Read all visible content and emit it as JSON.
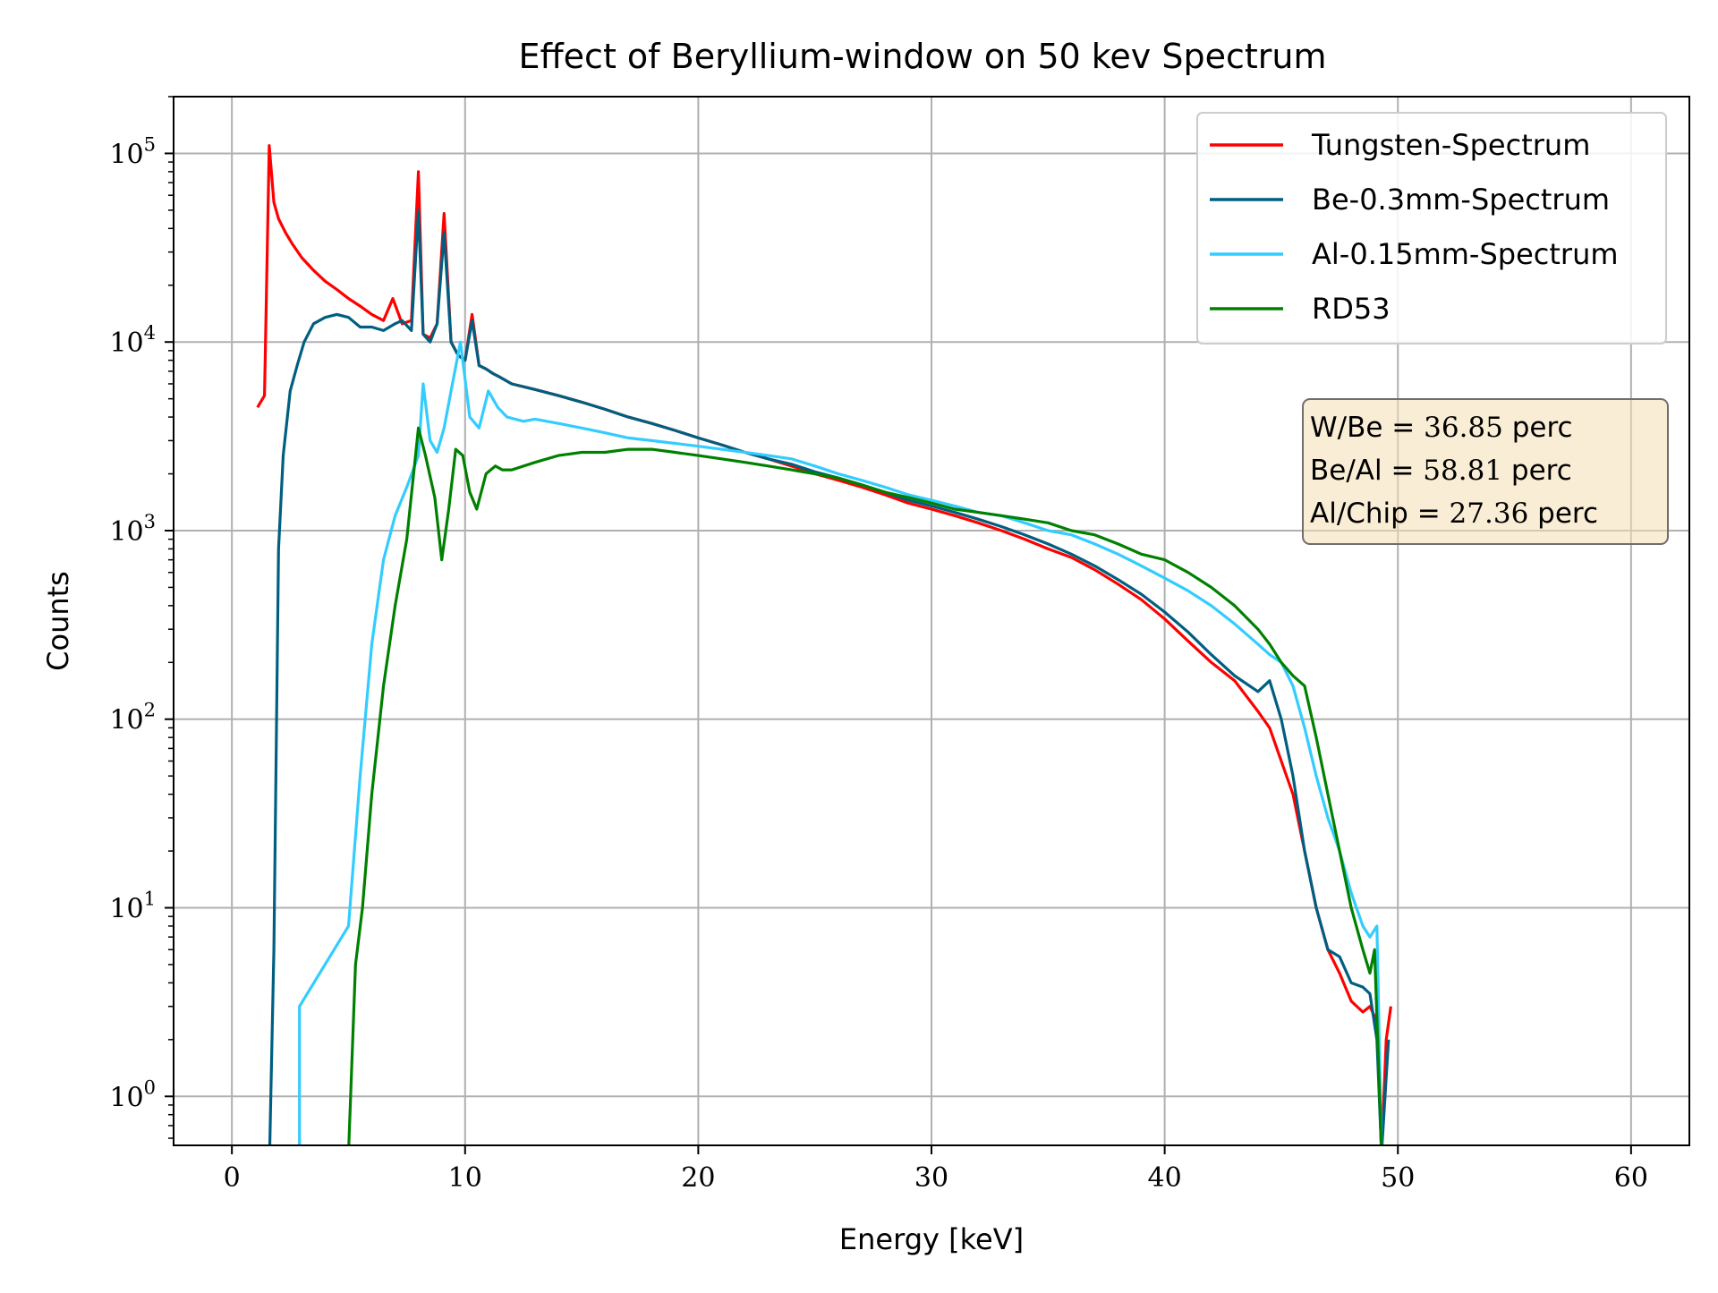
{
  "chart_data": {
    "type": "line",
    "title": "Effect of Beryllium-window on 50 kev Spectrum",
    "xlabel": "Energy [keV]",
    "ylabel": "Counts",
    "xscale": "linear",
    "yscale": "log",
    "xlim": [
      -2.5,
      62.5
    ],
    "ylim": [
      0.55,
      200000
    ],
    "x_ticks": [
      0,
      10,
      20,
      30,
      40,
      50,
      60
    ],
    "x_tick_labels": [
      "0",
      "10",
      "20",
      "30",
      "40",
      "50",
      "60"
    ],
    "y_ticks": [
      1,
      10,
      100,
      1000,
      10000,
      100000
    ],
    "y_tick_labels": [
      {
        "base": "10",
        "exp": "0"
      },
      {
        "base": "10",
        "exp": "1"
      },
      {
        "base": "10",
        "exp": "2"
      },
      {
        "base": "10",
        "exp": "3"
      },
      {
        "base": "10",
        "exp": "4"
      },
      {
        "base": "10",
        "exp": "5"
      }
    ],
    "grid": true,
    "legend_position": "top-right",
    "series": [
      {
        "name": "Tungsten-Spectrum",
        "color": "#ff0000",
        "x": [
          1.1,
          1.4,
          1.6,
          1.8,
          2.0,
          2.3,
          2.6,
          3.0,
          3.5,
          4.0,
          4.5,
          5.0,
          5.5,
          6.0,
          6.5,
          6.9,
          7.3,
          7.7,
          8.0,
          8.2,
          8.5,
          8.8,
          9.1,
          9.4,
          9.7,
          10.0,
          10.3,
          10.6,
          10.9,
          11.2,
          11.5,
          12,
          13,
          14,
          15,
          16,
          17,
          18,
          19,
          20,
          21,
          22,
          23,
          24,
          25,
          26,
          27,
          28,
          29,
          30,
          31,
          32,
          33,
          34,
          35,
          36,
          37,
          38,
          39,
          40,
          41,
          42,
          43,
          44,
          44.5,
          45,
          45.5,
          46,
          46.5,
          47,
          47.5,
          48,
          48.5,
          48.8,
          49.1,
          49.3,
          49.5,
          49.7
        ],
        "y": [
          4500,
          5200,
          110000,
          55000,
          45000,
          38000,
          33000,
          28000,
          24000,
          21000,
          19000,
          17000,
          15500,
          14000,
          13000,
          17000,
          12500,
          13000,
          80000,
          11000,
          10500,
          12500,
          48000,
          10000,
          8500,
          8000,
          14000,
          7500,
          7200,
          6800,
          6500,
          6000,
          5600,
          5200,
          4800,
          4400,
          4000,
          3700,
          3400,
          3100,
          2850,
          2600,
          2400,
          2200,
          2000,
          1850,
          1700,
          1550,
          1400,
          1300,
          1200,
          1100,
          1000,
          900,
          800,
          720,
          620,
          520,
          430,
          340,
          260,
          200,
          160,
          110,
          90,
          60,
          40,
          20,
          10,
          6,
          4.5,
          3.2,
          2.8,
          3.0,
          2.5,
          0.5,
          2.0,
          3.0
        ],
        "value_note": "approximate, read from a log-scaled axis"
      },
      {
        "name": "Be-0.3mm-Spectrum",
        "color": "#005f80",
        "x": [
          1.6,
          1.8,
          2.0,
          2.2,
          2.5,
          2.8,
          3.1,
          3.5,
          4.0,
          4.5,
          5.0,
          5.5,
          6.0,
          6.5,
          7.0,
          7.3,
          7.7,
          8.0,
          8.2,
          8.5,
          8.8,
          9.1,
          9.4,
          9.7,
          10.0,
          10.3,
          10.6,
          10.9,
          11.2,
          11.5,
          12,
          13,
          14,
          15,
          16,
          17,
          18,
          19,
          20,
          21,
          22,
          23,
          24,
          25,
          26,
          27,
          28,
          29,
          30,
          31,
          32,
          33,
          34,
          35,
          36,
          37,
          38,
          39,
          40,
          41,
          42,
          43,
          44,
          44.5,
          45,
          45.5,
          46,
          46.5,
          47,
          47.5,
          48,
          48.5,
          48.8,
          49.1,
          49.3,
          49.6
        ],
        "y": [
          0.4,
          6,
          800,
          2500,
          5500,
          7500,
          10000,
          12500,
          13500,
          14000,
          13500,
          12000,
          12000,
          11500,
          12500,
          13000,
          11500,
          50000,
          11000,
          10000,
          12500,
          38000,
          10000,
          8500,
          8000,
          13000,
          7500,
          7200,
          6800,
          6500,
          6000,
          5600,
          5200,
          4800,
          4400,
          4000,
          3700,
          3400,
          3100,
          2850,
          2600,
          2400,
          2250,
          2050,
          1900,
          1750,
          1600,
          1450,
          1350,
          1250,
          1150,
          1050,
          950,
          850,
          750,
          650,
          550,
          460,
          370,
          290,
          220,
          170,
          140,
          160,
          100,
          50,
          20,
          10,
          6,
          5.5,
          4.0,
          3.8,
          3.5,
          2.0,
          0.5,
          2.0
        ],
        "value_note": "approximate, read from a log-scaled axis"
      },
      {
        "name": "Al-0.15mm-Spectrum",
        "color": "#33ccff",
        "x": [
          2.9,
          2.9,
          5.0,
          5.5,
          6.0,
          6.5,
          7.0,
          7.5,
          8.0,
          8.2,
          8.5,
          8.8,
          9.1,
          9.4,
          9.8,
          10.2,
          10.6,
          11.0,
          11.4,
          11.8,
          12.5,
          13,
          14,
          15,
          16,
          17,
          18,
          19,
          20,
          21,
          22,
          23,
          24,
          25,
          26,
          27,
          28,
          29,
          30,
          31,
          32,
          33,
          34,
          35,
          36,
          37,
          38,
          39,
          40,
          41,
          42,
          43,
          44,
          44.5,
          45,
          45.5,
          46,
          46.5,
          47,
          47.5,
          48,
          48.5,
          48.8,
          49.1,
          49.3
        ],
        "y": [
          0.5,
          3.0,
          8,
          50,
          250,
          700,
          1200,
          1700,
          2500,
          6000,
          3000,
          2600,
          3500,
          5500,
          10000,
          4000,
          3500,
          5500,
          4500,
          4000,
          3800,
          3900,
          3700,
          3500,
          3300,
          3100,
          3000,
          2900,
          2800,
          2700,
          2600,
          2500,
          2400,
          2200,
          2000,
          1850,
          1700,
          1550,
          1450,
          1350,
          1250,
          1200,
          1100,
          1000,
          950,
          850,
          750,
          650,
          560,
          480,
          400,
          320,
          250,
          220,
          200,
          150,
          90,
          50,
          30,
          20,
          12,
          8,
          7,
          8,
          0.5
        ],
        "value_note": "approximate, read from a log-scaled axis"
      },
      {
        "name": "RD53",
        "color": "#008000",
        "x": [
          5.0,
          5.3,
          5.6,
          6.0,
          6.5,
          7.0,
          7.5,
          8.0,
          8.3,
          8.7,
          9.0,
          9.3,
          9.6,
          9.9,
          10.2,
          10.5,
          10.9,
          11.3,
          11.6,
          12,
          13,
          14,
          15,
          16,
          17,
          18,
          19,
          20,
          21,
          22,
          23,
          24,
          25,
          26,
          27,
          28,
          29,
          30,
          31,
          32,
          33,
          34,
          35,
          36,
          37,
          38,
          39,
          40,
          41,
          42,
          43,
          44,
          44.5,
          45,
          45.5,
          46,
          46.5,
          47,
          47.5,
          48,
          48.5,
          48.8,
          49.0,
          49.3
        ],
        "y": [
          0.5,
          5,
          10,
          40,
          150,
          400,
          900,
          3500,
          2500,
          1500,
          700,
          1300,
          2700,
          2500,
          1600,
          1300,
          2000,
          2200,
          2100,
          2100,
          2300,
          2500,
          2600,
          2600,
          2700,
          2700,
          2600,
          2500,
          2400,
          2300,
          2200,
          2100,
          2000,
          1900,
          1750,
          1600,
          1500,
          1400,
          1300,
          1250,
          1200,
          1150,
          1100,
          1000,
          950,
          850,
          750,
          700,
          600,
          500,
          400,
          300,
          250,
          200,
          170,
          150,
          80,
          40,
          20,
          10,
          6,
          4.5,
          6.0,
          0.5
        ],
        "value_note": "approximate, read from a log-scaled axis"
      }
    ],
    "annotation_box": {
      "lines": [
        {
          "label": "W/Be",
          "op": "=",
          "value": "36.85",
          "unit": "perc"
        },
        {
          "label": "Be/Al",
          "op": "=",
          "value": "58.81",
          "unit": "perc"
        },
        {
          "label": "Al/Chip",
          "op": "=",
          "value": "27.36",
          "unit": "perc"
        }
      ],
      "background": "#f5deb3",
      "position": "right, below legend"
    }
  }
}
